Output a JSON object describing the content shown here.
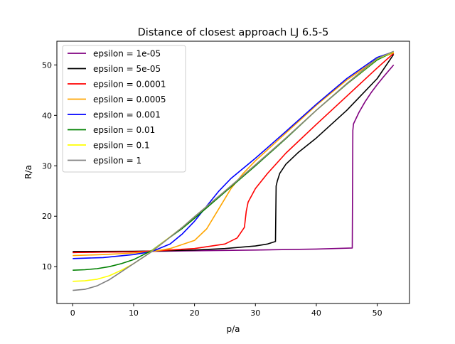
{
  "chart_data": {
    "type": "line",
    "title": "Distance of closest approach LJ 6.5-5",
    "xlabel": "p/a",
    "ylabel": "R/a",
    "xlim": [
      -2.6,
      55.3
    ],
    "ylim": [
      2.7,
      54.7
    ],
    "xticks": [
      0,
      10,
      20,
      30,
      40,
      50
    ],
    "yticks": [
      10,
      20,
      30,
      40,
      50
    ],
    "grid": false,
    "legend_position": "top-left",
    "series": [
      {
        "name": "epsilon = 1e-05",
        "color": "#800080",
        "x": [
          0,
          10,
          20,
          30,
          40,
          45.9,
          46.0,
          46.1,
          47,
          48,
          49,
          50,
          51,
          52,
          52.7
        ],
        "y": [
          12.8,
          13.0,
          13.15,
          13.3,
          13.5,
          13.7,
          37.0,
          38.3,
          40.6,
          42.7,
          44.5,
          46.1,
          47.6,
          49.0,
          50.0
        ]
      },
      {
        "name": "epsilon = 5e-05",
        "color": "#000000",
        "x": [
          0,
          10,
          13,
          20,
          25,
          30,
          32,
          33.3,
          33.4,
          33.6,
          34,
          35,
          37,
          40,
          45,
          50,
          52.7
        ],
        "y": [
          13.0,
          13.05,
          13.1,
          13.3,
          13.6,
          14.1,
          14.5,
          15.0,
          26.0,
          27.0,
          28.5,
          30.3,
          32.6,
          35.5,
          41.0,
          47.3,
          52.1
        ]
      },
      {
        "name": "epsilon = 0.0001",
        "color": "#ff0000",
        "x": [
          0,
          10,
          13,
          20,
          25,
          27,
          28.2,
          28.5,
          28.8,
          30,
          32,
          35,
          40,
          45,
          50,
          52.7
        ],
        "y": [
          12.8,
          12.95,
          13.1,
          13.6,
          14.5,
          15.7,
          17.8,
          21.0,
          22.8,
          25.5,
          28.5,
          32.5,
          38.2,
          43.8,
          49.4,
          52.3
        ]
      },
      {
        "name": "epsilon = 0.0005",
        "color": "#ffa500",
        "x": [
          0,
          5,
          10,
          13,
          16,
          20,
          22,
          24,
          26,
          28,
          30,
          35,
          40,
          45,
          50,
          52.7
        ],
        "y": [
          12.2,
          12.4,
          12.7,
          13.0,
          13.6,
          15.2,
          17.5,
          21.5,
          25.5,
          28.5,
          31.0,
          36.5,
          42.0,
          47.0,
          51.2,
          52.4
        ]
      },
      {
        "name": "epsilon = 0.001",
        "color": "#0000ff",
        "x": [
          0,
          5,
          10,
          13,
          16,
          18,
          20,
          22,
          24,
          26,
          30,
          35,
          40,
          45,
          50,
          52.7
        ],
        "y": [
          11.6,
          11.8,
          12.4,
          13.0,
          14.5,
          16.5,
          19.0,
          22.0,
          25.0,
          27.5,
          31.5,
          36.8,
          42.2,
          47.3,
          51.5,
          52.6
        ]
      },
      {
        "name": "epsilon = 0.01",
        "color": "#008000",
        "x": [
          0,
          2,
          4,
          6,
          8,
          10,
          12,
          13,
          15,
          18,
          20,
          25,
          30,
          35,
          40,
          45,
          50,
          52.7
        ],
        "y": [
          9.3,
          9.4,
          9.6,
          10.0,
          10.6,
          11.4,
          12.6,
          13.2,
          15.0,
          17.6,
          19.6,
          24.8,
          30.0,
          35.4,
          41.0,
          46.2,
          51.0,
          52.6
        ]
      },
      {
        "name": "epsilon = 0.1",
        "color": "#ffff00",
        "x": [
          0,
          2,
          4,
          6,
          8,
          10,
          12,
          13,
          15,
          18,
          20,
          25,
          30,
          35,
          40,
          45,
          50,
          52.7
        ],
        "y": [
          7.1,
          7.2,
          7.5,
          8.2,
          9.3,
          10.6,
          12.2,
          13.1,
          15.0,
          17.8,
          19.9,
          25.0,
          30.2,
          35.5,
          41.0,
          46.3,
          51.2,
          52.6
        ]
      },
      {
        "name": "epsilon = 1",
        "color": "#808080",
        "x": [
          0,
          2,
          4,
          6,
          8,
          10,
          12,
          13,
          15,
          18,
          20,
          25,
          30,
          35,
          40,
          45,
          50,
          52.7
        ],
        "y": [
          5.3,
          5.5,
          6.2,
          7.4,
          9.0,
          10.6,
          12.2,
          13.0,
          14.9,
          17.8,
          19.9,
          25.0,
          30.2,
          35.5,
          41.0,
          46.3,
          51.3,
          52.7
        ]
      }
    ]
  }
}
